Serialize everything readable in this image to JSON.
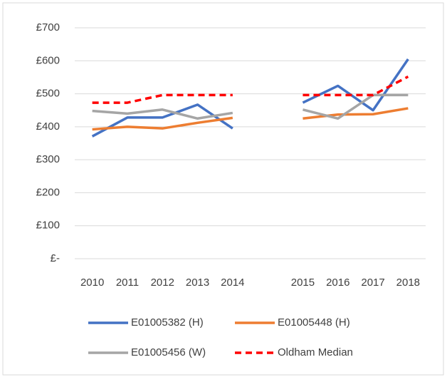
{
  "chart_data": {
    "type": "line",
    "categories": [
      "2010",
      "2011",
      "2012",
      "2013",
      "2014",
      null,
      "2015",
      "2016",
      "2017",
      "2018"
    ],
    "series": [
      {
        "name": "E01005382 (H)",
        "color": "#4472c4",
        "dash": false,
        "values": [
          371,
          428,
          428,
          467,
          395,
          null,
          473,
          524,
          450,
          605
        ]
      },
      {
        "name": "E01005448 (H)",
        "color": "#ed7d31",
        "dash": false,
        "values": [
          392,
          400,
          395,
          412,
          427,
          null,
          425,
          437,
          438,
          456
        ]
      },
      {
        "name": "E01005456 (W)",
        "color": "#a5a5a5",
        "dash": false,
        "values": [
          448,
          440,
          452,
          425,
          442,
          null,
          452,
          425,
          496,
          496
        ]
      },
      {
        "name": "Oldham Median",
        "color": "#ff0000",
        "dash": true,
        "values": [
          473,
          473,
          496,
          496,
          496,
          null,
          496,
          496,
          496,
          552
        ]
      }
    ],
    "ylim": [
      0,
      700
    ],
    "yticks": [
      {
        "value": 0,
        "label": "£-"
      },
      {
        "value": 100,
        "label": "£100"
      },
      {
        "value": 200,
        "label": "£200"
      },
      {
        "value": 300,
        "label": "£300"
      },
      {
        "value": 400,
        "label": "£400"
      },
      {
        "value": 500,
        "label": "£500"
      },
      {
        "value": 600,
        "label": "£600"
      },
      {
        "value": 700,
        "label": "£700"
      }
    ],
    "grid": true
  }
}
